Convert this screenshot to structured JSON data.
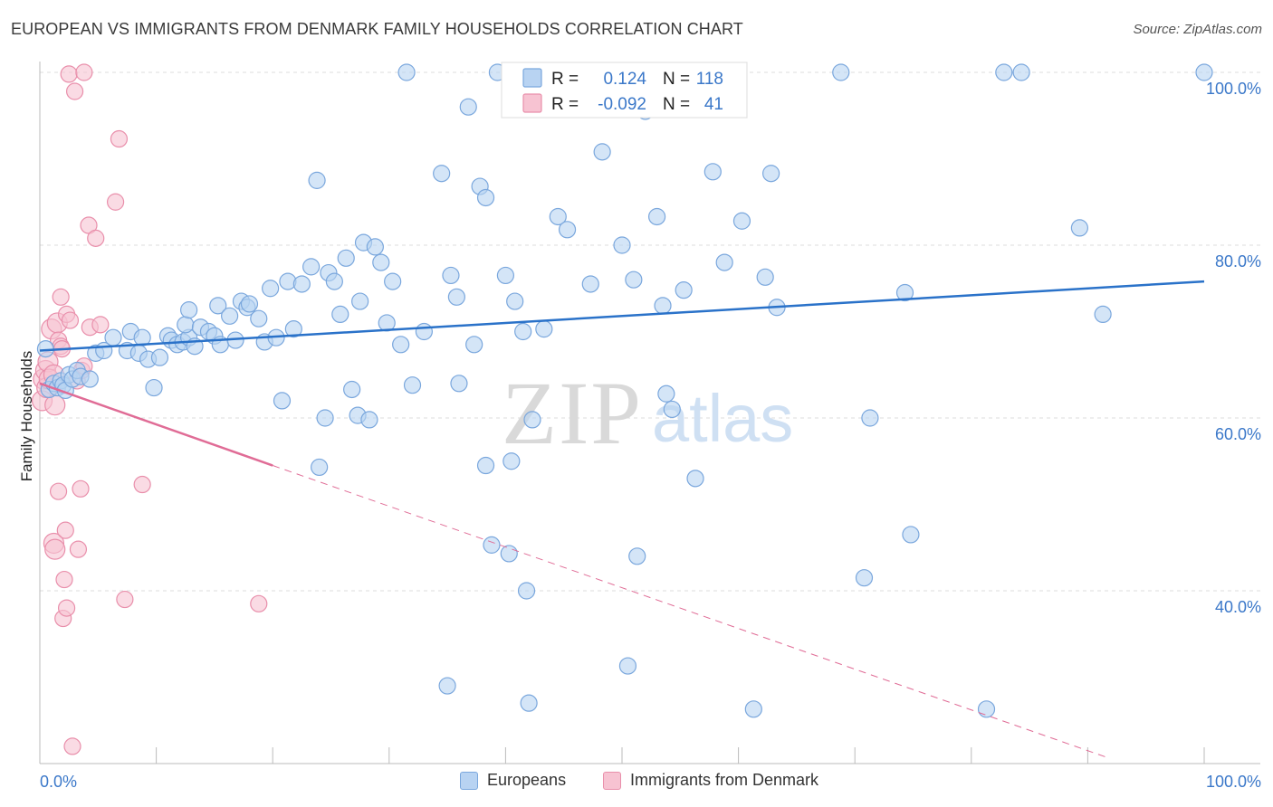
{
  "header": {
    "title": "EUROPEAN VS IMMIGRANTS FROM DENMARK FAMILY HOUSEHOLDS CORRELATION CHART",
    "source": "Source: ZipAtlas.com"
  },
  "watermark": {
    "zip": "ZIP",
    "atlas": "atlas"
  },
  "colors": {
    "blue_fill": "#b8d3f2",
    "blue_stroke": "#7aa7dd",
    "blue_line": "#2a72c9",
    "pink_fill": "#f7c3d2",
    "pink_stroke": "#e98fab",
    "pink_line": "#e06c96",
    "axis_text_blue": "#3b78c9",
    "grid": "#dddddd"
  },
  "chart_data": {
    "type": "scatter",
    "title": "EUROPEAN VS IMMIGRANTS FROM DENMARK FAMILY HOUSEHOLDS CORRELATION CHART",
    "xlabel": "",
    "ylabel": "Family Households",
    "xlim": [
      0,
      100
    ],
    "ylim": [
      20,
      100
    ],
    "x_tick_labels": [
      "0.0%",
      "100.0%"
    ],
    "y_ticks": [
      40,
      60,
      80,
      100
    ],
    "y_tick_labels": [
      "40.0%",
      "60.0%",
      "80.0%",
      "100.0%"
    ],
    "grid": true,
    "legend_stats": [
      {
        "series": "Europeans",
        "r_label": "R =",
        "r_value": "0.124",
        "n_label": "N =",
        "n_value": "118"
      },
      {
        "series": "Immigrants from Denmark",
        "r_label": "R =",
        "r_value": "-0.092",
        "n_label": "N =",
        "n_value": "41"
      }
    ],
    "series": [
      {
        "name": "Europeans",
        "color": "#b8d3f2",
        "trend": {
          "x": [
            0,
            100
          ],
          "y": [
            67.8,
            75.8
          ],
          "style": "solid"
        },
        "points": [
          {
            "x": 0.5,
            "y": 68.0
          },
          {
            "x": 0.8,
            "y": 63.3
          },
          {
            "x": 1.2,
            "y": 64.0
          },
          {
            "x": 1.5,
            "y": 63.5
          },
          {
            "x": 1.8,
            "y": 64.3
          },
          {
            "x": 2.0,
            "y": 63.8
          },
          {
            "x": 2.2,
            "y": 63.2
          },
          {
            "x": 2.5,
            "y": 65.0
          },
          {
            "x": 2.8,
            "y": 64.5
          },
          {
            "x": 3.2,
            "y": 65.5
          },
          {
            "x": 3.5,
            "y": 64.8
          },
          {
            "x": 4.3,
            "y": 64.5
          },
          {
            "x": 4.8,
            "y": 67.5
          },
          {
            "x": 5.5,
            "y": 67.8
          },
          {
            "x": 6.3,
            "y": 69.3
          },
          {
            "x": 7.5,
            "y": 67.8
          },
          {
            "x": 7.8,
            "y": 70.0
          },
          {
            "x": 8.5,
            "y": 67.5
          },
          {
            "x": 8.8,
            "y": 69.3
          },
          {
            "x": 9.3,
            "y": 66.8
          },
          {
            "x": 9.8,
            "y": 63.5
          },
          {
            "x": 10.3,
            "y": 67.0
          },
          {
            "x": 11.0,
            "y": 69.5
          },
          {
            "x": 11.3,
            "y": 69.0
          },
          {
            "x": 11.8,
            "y": 68.5
          },
          {
            "x": 12.3,
            "y": 68.8
          },
          {
            "x": 12.8,
            "y": 69.3
          },
          {
            "x": 12.5,
            "y": 70.8
          },
          {
            "x": 12.8,
            "y": 72.5
          },
          {
            "x": 13.3,
            "y": 68.3
          },
          {
            "x": 13.8,
            "y": 70.5
          },
          {
            "x": 14.5,
            "y": 70.0
          },
          {
            "x": 15.0,
            "y": 69.5
          },
          {
            "x": 15.3,
            "y": 73.0
          },
          {
            "x": 15.5,
            "y": 68.5
          },
          {
            "x": 16.3,
            "y": 71.8
          },
          {
            "x": 16.8,
            "y": 69.0
          },
          {
            "x": 17.3,
            "y": 73.5
          },
          {
            "x": 17.8,
            "y": 72.8
          },
          {
            "x": 18.0,
            "y": 73.2
          },
          {
            "x": 18.8,
            "y": 71.5
          },
          {
            "x": 19.3,
            "y": 68.8
          },
          {
            "x": 19.8,
            "y": 75.0
          },
          {
            "x": 20.3,
            "y": 69.3
          },
          {
            "x": 20.8,
            "y": 62.0
          },
          {
            "x": 21.3,
            "y": 75.8
          },
          {
            "x": 21.8,
            "y": 70.3
          },
          {
            "x": 22.5,
            "y": 75.5
          },
          {
            "x": 23.3,
            "y": 77.5
          },
          {
            "x": 23.8,
            "y": 87.5
          },
          {
            "x": 24.5,
            "y": 60.0
          },
          {
            "x": 24.8,
            "y": 76.8
          },
          {
            "x": 25.3,
            "y": 75.8
          },
          {
            "x": 25.8,
            "y": 72.0
          },
          {
            "x": 26.3,
            "y": 78.5
          },
          {
            "x": 26.8,
            "y": 63.3
          },
          {
            "x": 27.5,
            "y": 73.5
          },
          {
            "x": 27.3,
            "y": 60.3
          },
          {
            "x": 27.8,
            "y": 80.3
          },
          {
            "x": 28.3,
            "y": 59.8
          },
          {
            "x": 28.8,
            "y": 79.8
          },
          {
            "x": 29.3,
            "y": 78.0
          },
          {
            "x": 29.8,
            "y": 71.0
          },
          {
            "x": 30.3,
            "y": 75.8
          },
          {
            "x": 31.0,
            "y": 68.5
          },
          {
            "x": 32.0,
            "y": 63.8
          },
          {
            "x": 33.0,
            "y": 70.0
          },
          {
            "x": 34.5,
            "y": 88.3
          },
          {
            "x": 35.3,
            "y": 76.5
          },
          {
            "x": 35.8,
            "y": 74.0
          },
          {
            "x": 36.8,
            "y": 96.0
          },
          {
            "x": 37.3,
            "y": 68.5
          },
          {
            "x": 37.8,
            "y": 86.8
          },
          {
            "x": 38.3,
            "y": 85.5
          },
          {
            "x": 38.3,
            "y": 54.5
          },
          {
            "x": 38.8,
            "y": 45.3
          },
          {
            "x": 39.3,
            "y": 100.0
          },
          {
            "x": 40.0,
            "y": 76.5
          },
          {
            "x": 40.3,
            "y": 44.3
          },
          {
            "x": 40.5,
            "y": 55.0
          },
          {
            "x": 40.8,
            "y": 73.5
          },
          {
            "x": 41.5,
            "y": 70.0
          },
          {
            "x": 41.8,
            "y": 40.0
          },
          {
            "x": 42.0,
            "y": 27.0
          },
          {
            "x": 42.3,
            "y": 59.8
          },
          {
            "x": 43.3,
            "y": 70.3
          },
          {
            "x": 44.5,
            "y": 83.3
          },
          {
            "x": 45.3,
            "y": 81.8
          },
          {
            "x": 47.3,
            "y": 75.5
          },
          {
            "x": 48.3,
            "y": 90.8
          },
          {
            "x": 50.0,
            "y": 80.0
          },
          {
            "x": 50.5,
            "y": 31.3
          },
          {
            "x": 51.0,
            "y": 76.0
          },
          {
            "x": 51.3,
            "y": 44.0
          },
          {
            "x": 52.0,
            "y": 95.5
          },
          {
            "x": 53.0,
            "y": 83.3
          },
          {
            "x": 53.5,
            "y": 73.0
          },
          {
            "x": 53.8,
            "y": 62.8
          },
          {
            "x": 54.3,
            "y": 61.0
          },
          {
            "x": 55.3,
            "y": 74.8
          },
          {
            "x": 56.3,
            "y": 53.0
          },
          {
            "x": 57.8,
            "y": 88.5
          },
          {
            "x": 58.8,
            "y": 78.0
          },
          {
            "x": 60.3,
            "y": 82.8
          },
          {
            "x": 61.3,
            "y": 26.3
          },
          {
            "x": 62.3,
            "y": 76.3
          },
          {
            "x": 62.8,
            "y": 88.3
          },
          {
            "x": 63.3,
            "y": 72.8
          },
          {
            "x": 68.8,
            "y": 100.0
          },
          {
            "x": 70.8,
            "y": 41.5
          },
          {
            "x": 71.3,
            "y": 60.0
          },
          {
            "x": 74.3,
            "y": 74.5
          },
          {
            "x": 74.8,
            "y": 46.5
          },
          {
            "x": 81.3,
            "y": 26.3
          },
          {
            "x": 82.8,
            "y": 100.0
          },
          {
            "x": 84.3,
            "y": 100.0
          },
          {
            "x": 89.3,
            "y": 82.0
          },
          {
            "x": 91.3,
            "y": 72.0
          },
          {
            "x": 100.0,
            "y": 100.0
          },
          {
            "x": 35.0,
            "y": 29.0
          },
          {
            "x": 36.0,
            "y": 64.0
          },
          {
            "x": 24.0,
            "y": 54.3
          },
          {
            "x": 31.5,
            "y": 100.0
          }
        ]
      },
      {
        "name": "Immigrants from Denmark",
        "color": "#f7c3d2",
        "trend": {
          "x": [
            0,
            20
          ],
          "y": [
            64.0,
            54.5
          ],
          "style": "solid",
          "extension": {
            "x": [
              20,
              100
            ],
            "y": [
              54.5,
              18.0
            ],
            "style": "dashed"
          }
        },
        "points": [
          {
            "x": 0.2,
            "y": 62.0
          },
          {
            "x": 0.3,
            "y": 64.5
          },
          {
            "x": 0.5,
            "y": 65.5
          },
          {
            "x": 0.6,
            "y": 63.5
          },
          {
            "x": 0.7,
            "y": 66.5
          },
          {
            "x": 0.8,
            "y": 64.5
          },
          {
            "x": 1.0,
            "y": 70.3
          },
          {
            "x": 1.2,
            "y": 65.0
          },
          {
            "x": 1.3,
            "y": 61.5
          },
          {
            "x": 1.2,
            "y": 45.5
          },
          {
            "x": 1.3,
            "y": 44.8
          },
          {
            "x": 1.5,
            "y": 71.0
          },
          {
            "x": 1.6,
            "y": 69.0
          },
          {
            "x": 1.6,
            "y": 51.5
          },
          {
            "x": 1.8,
            "y": 68.3
          },
          {
            "x": 1.8,
            "y": 74.0
          },
          {
            "x": 1.9,
            "y": 68.0
          },
          {
            "x": 2.0,
            "y": 36.8
          },
          {
            "x": 2.1,
            "y": 41.3
          },
          {
            "x": 2.2,
            "y": 47.0
          },
          {
            "x": 2.3,
            "y": 72.0
          },
          {
            "x": 2.3,
            "y": 38.0
          },
          {
            "x": 2.5,
            "y": 99.8
          },
          {
            "x": 2.6,
            "y": 71.3
          },
          {
            "x": 2.8,
            "y": 22.0
          },
          {
            "x": 3.0,
            "y": 97.8
          },
          {
            "x": 3.2,
            "y": 64.3
          },
          {
            "x": 3.3,
            "y": 44.8
          },
          {
            "x": 3.5,
            "y": 51.8
          },
          {
            "x": 3.6,
            "y": 65.5
          },
          {
            "x": 3.8,
            "y": 66.0
          },
          {
            "x": 3.8,
            "y": 100.0
          },
          {
            "x": 4.2,
            "y": 82.3
          },
          {
            "x": 4.3,
            "y": 70.5
          },
          {
            "x": 4.8,
            "y": 80.8
          },
          {
            "x": 5.2,
            "y": 70.8
          },
          {
            "x": 6.5,
            "y": 85.0
          },
          {
            "x": 6.8,
            "y": 92.3
          },
          {
            "x": 7.3,
            "y": 39.0
          },
          {
            "x": 8.8,
            "y": 52.3
          },
          {
            "x": 18.8,
            "y": 38.5
          }
        ]
      }
    ]
  },
  "bottom_legend": {
    "items": [
      {
        "label": "Europeans"
      },
      {
        "label": "Immigrants from Denmark"
      }
    ]
  }
}
